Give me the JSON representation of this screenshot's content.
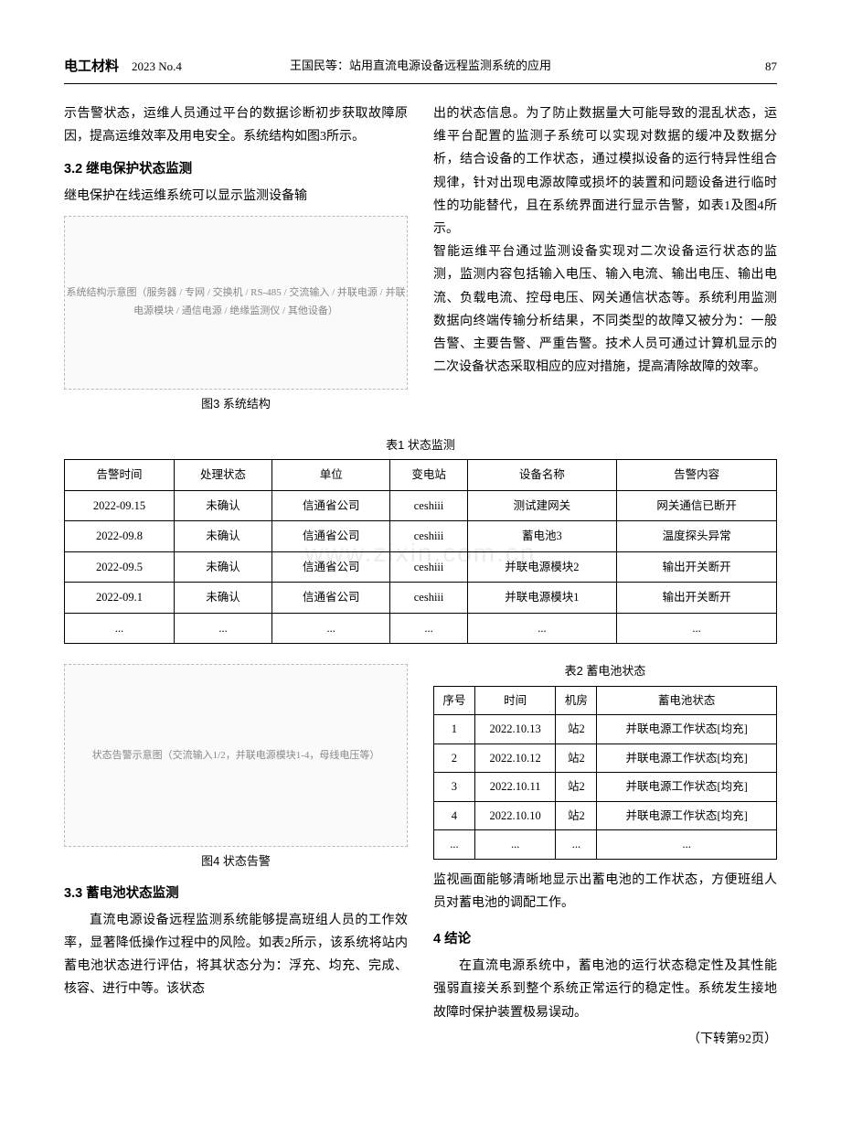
{
  "header": {
    "journal": "电工材料",
    "issue": "2023  No.4",
    "running_title": "王国民等：站用直流电源设备远程监测系统的应用",
    "page_no": "87"
  },
  "watermark": "www.zixin.com.cn",
  "top_columns": {
    "left": {
      "p1": "示告警状态，运维人员通过平台的数据诊断初步获取故障原因，提高运维效率及用电安全。系统结构如图3所示。",
      "h32": "3.2  继电保护状态监测",
      "p2": "继电保护在线运维系统可以显示监测设备输",
      "fig3_caption": "图3  系统结构",
      "fig3_alt": "系统结构示意图（服务器 / 专网 / 交换机 / RS-485 / 交流输入 / 并联电源 / 并联电源模块 / 通信电源 / 绝缘监测仪 / 其他设备）"
    },
    "right": {
      "p1": "出的状态信息。为了防止数据量大可能导致的混乱状态，运维平台配置的监测子系统可以实现对数据的缓冲及数据分析，结合设备的工作状态，通过模拟设备的运行特异性组合规律，针对出现电源故障或损坏的装置和问题设备进行临时性的功能替代，且在系统界面进行显示告警，如表1及图4所示。",
      "p2": "智能运维平台通过监测设备实现对二次设备运行状态的监测，监测内容包括输入电压、输入电流、输出电压、输出电流、负载电流、控母电压、网关通信状态等。系统利用监测数据向终端传输分析结果，不同类型的故障又被分为：一般告警、主要告警、严重告警。技术人员可通过计算机显示的二次设备状态采取相应的应对措施，提高清除故障的效率。"
    }
  },
  "table1": {
    "caption": "表1  状态监测",
    "headers": [
      "告警时间",
      "处理状态",
      "单位",
      "变电站",
      "设备名称",
      "告警内容"
    ],
    "rows": [
      [
        "2022-09.15",
        "未确认",
        "信通省公司",
        "ceshiii",
        "测试建网关",
        "网关通信已断开"
      ],
      [
        "2022-09.8",
        "未确认",
        "信通省公司",
        "ceshiii",
        "蓄电池3",
        "温度探头异常"
      ],
      [
        "2022-09.5",
        "未确认",
        "信通省公司",
        "ceshiii",
        "并联电源模块2",
        "输出开关断开"
      ],
      [
        "2022-09.1",
        "未确认",
        "信通省公司",
        "ceshiii",
        "并联电源模块1",
        "输出开关断开"
      ],
      [
        "...",
        "...",
        "...",
        "...",
        "...",
        "..."
      ]
    ]
  },
  "lower_left": {
    "fig4_caption": "图4  状态告警",
    "fig4_alt": "状态告警示意图（交流输入1/2，并联电源模块1-4，母线电压等）",
    "h33": "3.3  蓄电池状态监测",
    "p1": "直流电源设备远程监测系统能够提高班组人员的工作效率，显著降低操作过程中的风险。如表2所示，该系统将站内蓄电池状态进行评估，将其状态分为：浮充、均充、完成、核容、进行中等。该状态"
  },
  "lower_right": {
    "table2": {
      "caption": "表2  蓄电池状态",
      "headers": [
        "序号",
        "时间",
        "机房",
        "蓄电池状态"
      ],
      "rows": [
        [
          "1",
          "2022.10.13",
          "站2",
          "并联电源工作状态[均充]"
        ],
        [
          "2",
          "2022.10.12",
          "站2",
          "并联电源工作状态[均充]"
        ],
        [
          "3",
          "2022.10.11",
          "站2",
          "并联电源工作状态[均充]"
        ],
        [
          "4",
          "2022.10.10",
          "站2",
          "并联电源工作状态[均充]"
        ],
        [
          "...",
          "...",
          "...",
          "..."
        ]
      ]
    },
    "p1": "监视画面能够清晰地显示出蓄电池的工作状态，方便班组人员对蓄电池的调配工作。",
    "h4": "4  结论",
    "p2": "在直流电源系统中，蓄电池的运行状态稳定性及其性能强弱直接关系到整个系统正常运行的稳定性。系统发生接地故障时保护装置极易误动。",
    "cont": "（下转第92页）"
  }
}
